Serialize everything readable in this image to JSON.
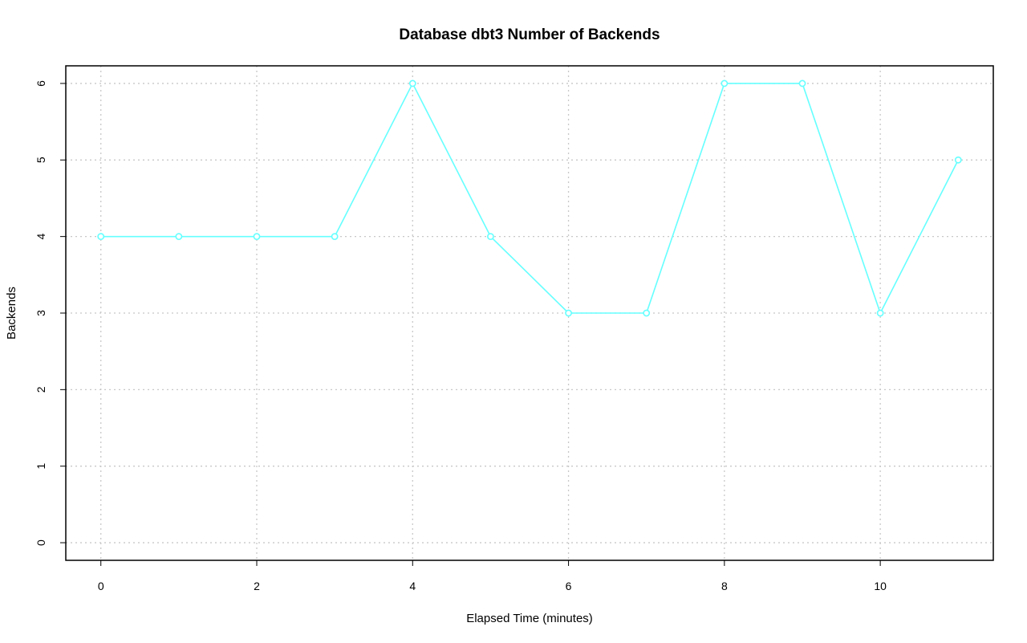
{
  "chart_data": {
    "type": "line",
    "title": "Database dbt3 Number of Backends",
    "xlabel": "Elapsed Time (minutes)",
    "ylabel": "Backends",
    "xlim": [
      -0.45,
      11.45
    ],
    "ylim": [
      -0.23,
      6.23
    ],
    "x_ticks": [
      0,
      2,
      4,
      6,
      8,
      10
    ],
    "y_ticks": [
      0,
      1,
      2,
      3,
      4,
      5,
      6
    ],
    "grid": true,
    "series": [
      {
        "color": "#66ffff",
        "marker": "open-circle",
        "x": [
          0,
          1,
          2,
          3,
          4,
          5,
          6,
          7,
          8,
          9,
          10,
          11
        ],
        "y": [
          4,
          4,
          4,
          4,
          6,
          4,
          3,
          3,
          6,
          6,
          3,
          5
        ]
      }
    ]
  }
}
